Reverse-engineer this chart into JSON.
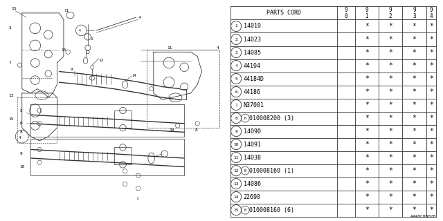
{
  "diagram_code": "A440C00078",
  "rows": [
    {
      "num": "1",
      "code": "14010",
      "b_prefix": false,
      "suffix": "",
      "cols": [
        false,
        true,
        true,
        true,
        true
      ]
    },
    {
      "num": "2",
      "code": "14023",
      "b_prefix": false,
      "suffix": "",
      "cols": [
        false,
        true,
        true,
        true,
        true
      ]
    },
    {
      "num": "3",
      "code": "14085",
      "b_prefix": false,
      "suffix": "",
      "cols": [
        false,
        true,
        true,
        true,
        true
      ]
    },
    {
      "num": "4",
      "code": "44104",
      "b_prefix": false,
      "suffix": "",
      "cols": [
        false,
        true,
        true,
        true,
        true
      ]
    },
    {
      "num": "5",
      "code": "44184D",
      "b_prefix": false,
      "suffix": "",
      "cols": [
        false,
        true,
        true,
        true,
        true
      ]
    },
    {
      "num": "6",
      "code": "44186",
      "b_prefix": false,
      "suffix": "",
      "cols": [
        false,
        true,
        true,
        true,
        true
      ]
    },
    {
      "num": "7",
      "code": "N37001",
      "b_prefix": false,
      "suffix": "",
      "cols": [
        false,
        true,
        true,
        true,
        true
      ]
    },
    {
      "num": "8",
      "code": "010008200",
      "b_prefix": true,
      "suffix": " (3)",
      "cols": [
        false,
        true,
        true,
        true,
        true
      ]
    },
    {
      "num": "9",
      "code": "14090",
      "b_prefix": false,
      "suffix": "",
      "cols": [
        false,
        true,
        true,
        true,
        true
      ]
    },
    {
      "num": "10",
      "code": "14091",
      "b_prefix": false,
      "suffix": "",
      "cols": [
        false,
        true,
        true,
        true,
        true
      ]
    },
    {
      "num": "11",
      "code": "14038",
      "b_prefix": false,
      "suffix": "",
      "cols": [
        false,
        true,
        true,
        true,
        true
      ]
    },
    {
      "num": "12",
      "code": "010008160",
      "b_prefix": true,
      "suffix": " (1)",
      "cols": [
        false,
        true,
        true,
        true,
        true
      ]
    },
    {
      "num": "13",
      "code": "14086",
      "b_prefix": false,
      "suffix": "",
      "cols": [
        false,
        true,
        true,
        true,
        true
      ]
    },
    {
      "num": "14",
      "code": "22690",
      "b_prefix": false,
      "suffix": "",
      "cols": [
        false,
        true,
        true,
        true,
        true
      ]
    },
    {
      "num": "15",
      "code": "010008160",
      "b_prefix": true,
      "suffix": " (6)",
      "cols": [
        false,
        true,
        true,
        true,
        true
      ]
    }
  ],
  "bg_color": "#ffffff",
  "line_color": "#333333",
  "text_color": "#000000",
  "table_font_size": 6.0
}
